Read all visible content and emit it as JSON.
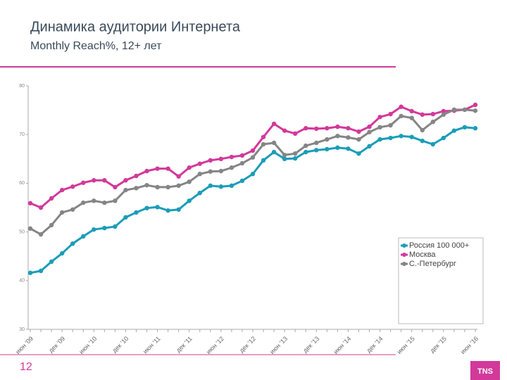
{
  "page_number": "12",
  "logo": "TNS",
  "chart_data": {
    "type": "line",
    "title": "Динамика аудитории Интернета",
    "subtitle": "Monthly Reach%, 12+ лет",
    "categories": [
      "июн '09",
      null,
      null,
      "дек '09",
      null,
      null,
      "июн '10",
      null,
      null,
      "дек '10",
      null,
      null,
      "июн '11",
      null,
      null,
      "дек '11",
      null,
      null,
      "июн '12",
      null,
      null,
      "дек '12",
      null,
      null,
      "июн '13",
      null,
      null,
      "дек '13",
      null,
      null,
      "июн '14",
      null,
      null,
      "дек '14",
      null,
      null,
      "июн '15",
      null,
      null,
      "дек '15",
      null,
      null,
      "июн '16"
    ],
    "series": [
      {
        "name": "Россия 100 000+",
        "color": "#1b9db8",
        "values": [
          41.6,
          42.0,
          43.9,
          45.6,
          47.6,
          49.1,
          50.5,
          50.8,
          51.1,
          53.0,
          54.0,
          54.9,
          55.1,
          54.4,
          54.6,
          56.4,
          58.0,
          59.5,
          59.3,
          59.5,
          60.5,
          61.9,
          64.7,
          66.4,
          65.0,
          65.1,
          66.4,
          66.8,
          67.0,
          67.3,
          67.1,
          66.1,
          67.6,
          69.0,
          69.3,
          69.7,
          69.5,
          68.7,
          68.0,
          69.3,
          70.8,
          71.5,
          71.3
        ]
      },
      {
        "name": "Москва",
        "color": "#d2399a",
        "values": [
          55.9,
          55.0,
          56.9,
          58.6,
          59.3,
          60.1,
          60.6,
          60.6,
          59.2,
          60.6,
          61.5,
          62.5,
          63.0,
          63.0,
          61.4,
          63.2,
          64.0,
          64.7,
          65.0,
          65.4,
          65.7,
          66.7,
          69.5,
          72.2,
          70.8,
          70.2,
          71.3,
          71.2,
          71.3,
          71.6,
          71.3,
          70.6,
          71.6,
          73.6,
          74.2,
          75.7,
          74.8,
          74.1,
          74.2,
          74.8,
          74.9,
          75.1,
          76.1
        ]
      },
      {
        "name": "С.-Петербург",
        "color": "#858585",
        "values": [
          50.7,
          49.5,
          51.4,
          54.0,
          54.6,
          56.0,
          56.4,
          56.0,
          56.4,
          58.6,
          59.0,
          59.6,
          59.2,
          59.2,
          59.5,
          60.3,
          61.9,
          62.4,
          62.5,
          63.2,
          64.1,
          65.3,
          68.0,
          68.3,
          65.8,
          66.1,
          67.7,
          68.3,
          69.0,
          69.7,
          69.4,
          69.0,
          70.5,
          71.5,
          71.9,
          73.8,
          73.4,
          70.9,
          72.6,
          74.1,
          75.1,
          75.1,
          74.9
        ]
      }
    ],
    "ylim": [
      30,
      80
    ],
    "yticks": [
      30,
      40,
      50,
      60,
      70,
      80
    ],
    "legend": "lower right",
    "grid": false
  }
}
